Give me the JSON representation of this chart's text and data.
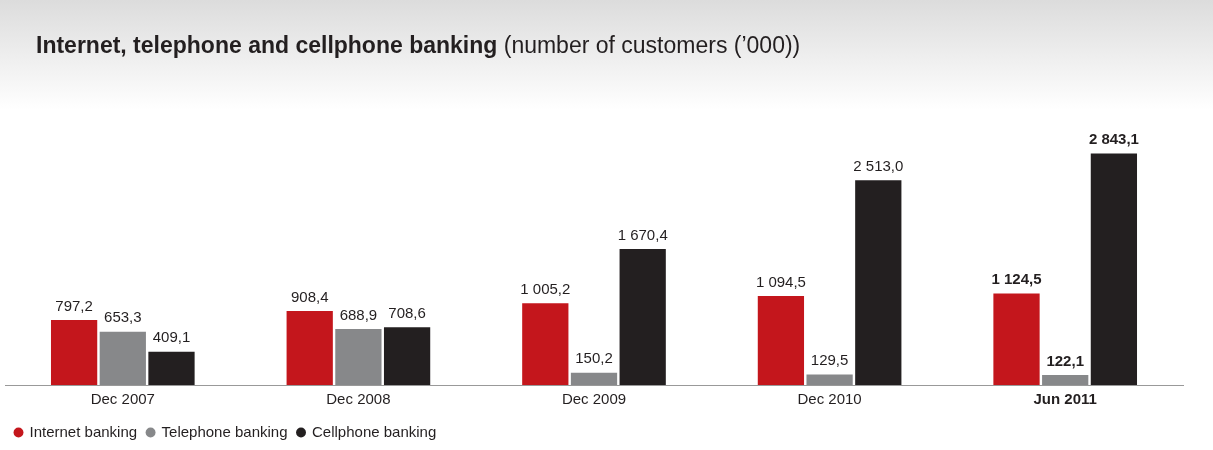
{
  "chart_data": {
    "type": "bar",
    "title": "Internet, telephone and cellphone banking",
    "subtitle": "(number of customers (’000))",
    "categories": [
      "Dec 2007",
      "Dec 2008",
      "Dec 2009",
      "Dec 2010",
      "Jun 2011"
    ],
    "series": [
      {
        "name": "Internet banking",
        "color": "#c4161c",
        "values": [
          797.2,
          908.4,
          1005.2,
          1094.5,
          1124.5
        ],
        "value_labels": [
          "797,2",
          "908,4",
          "1 005,2",
          "1 094,5",
          "1 124,5"
        ]
      },
      {
        "name": "Telephone banking",
        "color": "#87888a",
        "values": [
          653.3,
          688.9,
          150.2,
          129.5,
          122.1
        ],
        "value_labels": [
          "653,3",
          "688,9",
          "150,2",
          "129,5",
          "122,1"
        ]
      },
      {
        "name": "Cellphone banking",
        "color": "#231f20",
        "values": [
          409.1,
          708.6,
          1670.4,
          2513.0,
          2843.1
        ],
        "value_labels": [
          "409,1",
          "708,6",
          "1 670,4",
          "2 513,0",
          "2 843,1"
        ]
      }
    ],
    "legend": "bottom left"
  }
}
